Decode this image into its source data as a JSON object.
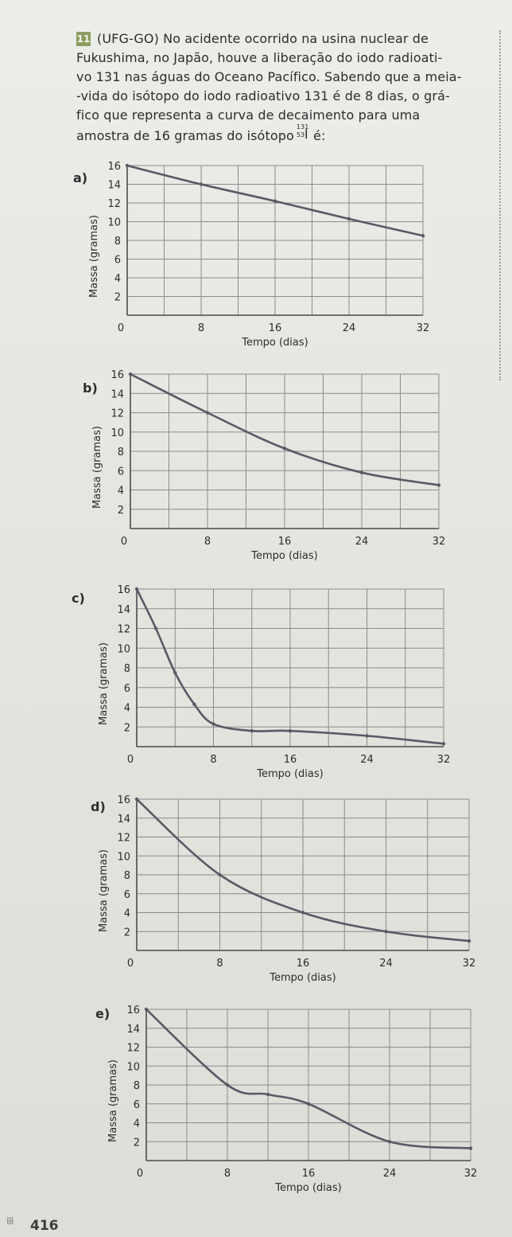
{
  "question": {
    "number": "11",
    "lines": [
      "(UFG-GO) No acidente ocorrido na usina nuclear de",
      "Fukushima, no Japão, houve a liberação do iodo radioati-",
      "vo 131 nas águas do Oceano Pacífico. Sabendo que a meia-",
      "-vida do isótopo do iodo radioativo 131 é de 8 dias, o grá-",
      "fico que representa a curva de decaimento para uma"
    ],
    "line6_text": "amostra de 16 gramas do isótopo",
    "line6_end": " é:",
    "isotope": {
      "mass_number": "131",
      "atomic_number": "53",
      "symbol": "I"
    }
  },
  "options": [
    {
      "letter": "a)"
    },
    {
      "letter": "b)"
    },
    {
      "letter": "c)"
    },
    {
      "letter": "d)"
    },
    {
      "letter": "e)"
    }
  ],
  "chart_data": [
    {
      "type": "line",
      "xlabel": "Tempo (dias)",
      "ylabel": "Massa (gramas)",
      "x_ticks": [
        "0",
        "8",
        "16",
        "24",
        "32"
      ],
      "y_ticks": [
        "2",
        "4",
        "6",
        "8",
        "10",
        "12",
        "14",
        "16"
      ],
      "xlim": [
        0,
        32
      ],
      "ylim": [
        0,
        16
      ],
      "grid": true,
      "series": [
        {
          "x": [
            0,
            8,
            16,
            24,
            32
          ],
          "y": [
            16,
            14,
            12.2,
            10.3,
            8.5
          ]
        }
      ]
    },
    {
      "type": "line",
      "xlabel": "Tempo (dias)",
      "ylabel": "Massa (gramas)",
      "x_ticks": [
        "0",
        "8",
        "16",
        "24",
        "32"
      ],
      "y_ticks": [
        "2",
        "4",
        "6",
        "8",
        "10",
        "12",
        "14",
        "16"
      ],
      "xlim": [
        0,
        32
      ],
      "ylim": [
        0,
        16
      ],
      "grid": true,
      "series": [
        {
          "x": [
            0,
            8,
            16,
            24,
            32
          ],
          "y": [
            16,
            12,
            8.3,
            5.8,
            4.5
          ]
        }
      ]
    },
    {
      "type": "line",
      "xlabel": "Tempo (dias)",
      "ylabel": "Massa (gramas)",
      "x_ticks": [
        "0",
        "8",
        "16",
        "24",
        "32"
      ],
      "y_ticks": [
        "2",
        "4",
        "6",
        "8",
        "10",
        "12",
        "14",
        "16"
      ],
      "xlim": [
        0,
        32
      ],
      "ylim": [
        0,
        16
      ],
      "grid": true,
      "series": [
        {
          "x": [
            0,
            2,
            4,
            6,
            8,
            12,
            16,
            24,
            32
          ],
          "y": [
            16,
            12,
            7.5,
            4.3,
            2.3,
            1.6,
            1.6,
            1.1,
            0.3
          ]
        }
      ]
    },
    {
      "type": "line",
      "xlabel": "Tempo (dias)",
      "ylabel": "Massa (gramas)",
      "x_ticks": [
        "0",
        "8",
        "16",
        "24",
        "32"
      ],
      "y_ticks": [
        "2",
        "4",
        "6",
        "8",
        "10",
        "12",
        "14",
        "16"
      ],
      "xlim": [
        0,
        32
      ],
      "ylim": [
        0,
        16
      ],
      "grid": true,
      "series": [
        {
          "x": [
            0,
            8,
            16,
            24,
            32
          ],
          "y": [
            16,
            8,
            4,
            2,
            1
          ]
        }
      ]
    },
    {
      "type": "line",
      "xlabel": "Tempo (dias)",
      "ylabel": "Massa (gramas)",
      "x_ticks": [
        "0",
        "8",
        "16",
        "24",
        "32"
      ],
      "y_ticks": [
        "2",
        "4",
        "6",
        "8",
        "10",
        "12",
        "14",
        "16"
      ],
      "xlim": [
        0,
        32
      ],
      "ylim": [
        0,
        16
      ],
      "grid": true,
      "series": [
        {
          "x": [
            0,
            8,
            12,
            16,
            24,
            32
          ],
          "y": [
            16,
            8,
            7,
            6,
            2,
            1.3
          ]
        }
      ]
    }
  ],
  "colors": {
    "curve": "#5a5a66",
    "grid": "#8a8c8e",
    "axis": "#4a4b4d",
    "badge": "#8e9c63"
  },
  "page_number": "416"
}
